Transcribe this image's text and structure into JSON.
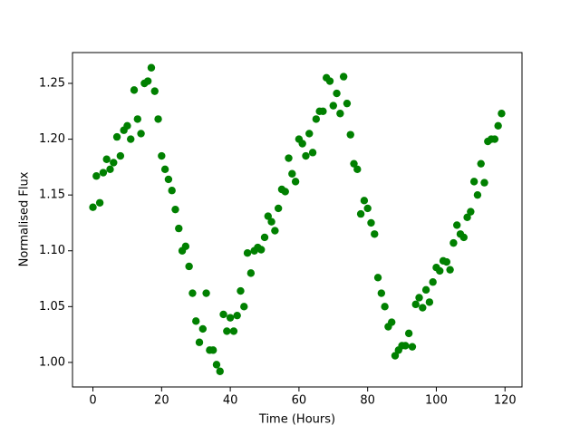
{
  "chart_data": {
    "type": "scatter",
    "x_label": "Time (Hours)",
    "y_label": "Normalised Flux",
    "color": "#008000",
    "x": [
      0,
      1,
      2,
      3,
      4,
      5,
      6,
      7,
      8,
      9,
      10,
      11,
      12,
      13,
      14,
      15,
      16,
      17,
      18,
      19,
      20,
      21,
      22,
      23,
      24,
      25,
      26,
      27,
      28,
      29,
      30,
      31,
      32,
      33,
      34,
      35,
      36,
      37,
      38,
      39,
      40,
      41,
      42,
      43,
      44,
      45,
      46,
      47,
      48,
      49,
      50,
      51,
      52,
      53,
      54,
      55,
      56,
      57,
      58,
      59,
      60,
      61,
      62,
      63,
      64,
      65,
      66,
      67,
      68,
      69,
      70,
      71,
      72,
      73,
      74,
      75,
      76,
      77,
      78,
      79,
      80,
      81,
      82,
      83,
      84,
      85,
      86,
      87,
      88,
      89,
      90,
      91,
      92,
      93,
      94,
      95,
      96,
      97,
      98,
      99,
      100,
      101,
      102,
      103,
      104,
      105,
      106,
      107,
      108,
      109,
      110,
      111,
      112,
      113,
      114,
      115,
      116,
      117,
      118,
      119
    ],
    "values": [
      1.139,
      1.167,
      1.143,
      1.17,
      1.182,
      1.173,
      1.179,
      1.202,
      1.185,
      1.208,
      1.212,
      1.2,
      1.244,
      1.218,
      1.205,
      1.25,
      1.252,
      1.264,
      1.243,
      1.218,
      1.185,
      1.173,
      1.164,
      1.154,
      1.137,
      1.12,
      1.1,
      1.104,
      1.086,
      1.062,
      1.037,
      1.018,
      1.03,
      1.062,
      1.011,
      1.011,
      0.998,
      0.992,
      1.043,
      1.028,
      1.04,
      1.028,
      1.042,
      1.064,
      1.05,
      1.098,
      1.08,
      1.1,
      1.103,
      1.101,
      1.112,
      1.131,
      1.126,
      1.118,
      1.138,
      1.155,
      1.153,
      1.183,
      1.169,
      1.162,
      1.2,
      1.196,
      1.185,
      1.205,
      1.188,
      1.218,
      1.225,
      1.225,
      1.255,
      1.252,
      1.23,
      1.241,
      1.223,
      1.256,
      1.232,
      1.204,
      1.178,
      1.173,
      1.133,
      1.145,
      1.138,
      1.125,
      1.115,
      1.076,
      1.062,
      1.05,
      1.032,
      1.036,
      1.006,
      1.011,
      1.015,
      1.015,
      1.026,
      1.014,
      1.052,
      1.058,
      1.049,
      1.065,
      1.054,
      1.072,
      1.085,
      1.082,
      1.091,
      1.09,
      1.083,
      1.107,
      1.123,
      1.115,
      1.112,
      1.13,
      1.135,
      1.162,
      1.15,
      1.178,
      1.161,
      1.198,
      1.2,
      1.2,
      1.212,
      1.223
    ],
    "xlim": [
      -5.95,
      124.95
    ],
    "xticks": [
      0,
      20,
      40,
      60,
      80,
      100,
      120
    ],
    "ylim": [
      0.978,
      1.2776
    ],
    "yticks": [
      {
        "value": 1,
        "label": "1.00"
      },
      1.05,
      {
        "value": 1.1,
        "label": "1.10"
      },
      1.15,
      {
        "value": 1.2,
        "label": "1.20"
      },
      1.25
    ]
  }
}
